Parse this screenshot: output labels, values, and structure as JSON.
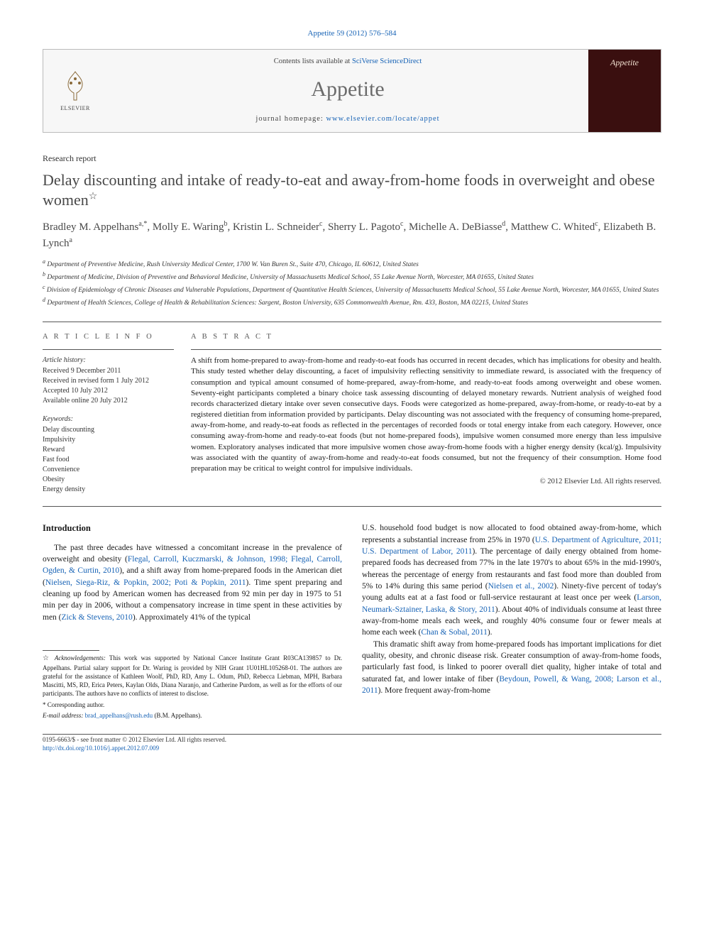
{
  "citation": "Appetite 59 (2012) 576–584",
  "masthead": {
    "contents_prefix": "Contents lists available at ",
    "contents_link": "SciVerse ScienceDirect",
    "journal_name": "Appetite",
    "homepage_prefix": "journal homepage: ",
    "homepage_link": "www.elsevier.com/locate/appet",
    "publisher": "ELSEVIER",
    "cover_label": "Appetite"
  },
  "article": {
    "type": "Research report",
    "title": "Delay discounting and intake of ready-to-eat and away-from-home foods in overweight and obese women",
    "title_star": "☆"
  },
  "authors_html": "Bradley M. Appelhans<sup>a,*</sup>, Molly E. Waring<sup>b</sup>, Kristin L. Schneider<sup>c</sup>, Sherry L. Pagoto<sup>c</sup>, Michelle A. DeBiasse<sup>d</sup>, Matthew C. Whited<sup>c</sup>, Elizabeth B. Lynch<sup>a</sup>",
  "affiliations": [
    "a Department of Preventive Medicine, Rush University Medical Center, 1700 W. Van Buren St., Suite 470, Chicago, IL 60612, United States",
    "b Department of Medicine, Division of Preventive and Behavioral Medicine, University of Massachusetts Medical School, 55 Lake Avenue North, Worcester, MA 01655, United States",
    "c Division of Epidemiology of Chronic Diseases and Vulnerable Populations, Department of Quantitative Health Sciences, University of Massachusetts Medical School, 55 Lake Avenue North, Worcester, MA 01655, United States",
    "d Department of Health Sciences, College of Health & Rehabilitation Sciences: Sargent, Boston University, 635 Commonwealth Avenue, Rm. 433, Boston, MA 02215, United States"
  ],
  "info": {
    "section_label": "A R T I C L E   I N F O",
    "history_label": "Article history:",
    "history": [
      "Received 9 December 2011",
      "Received in revised form 1 July 2012",
      "Accepted 10 July 2012",
      "Available online 20 July 2012"
    ],
    "keywords_label": "Keywords:",
    "keywords": [
      "Delay discounting",
      "Impulsivity",
      "Reward",
      "Fast food",
      "Convenience",
      "Obesity",
      "Energy density"
    ]
  },
  "abstract": {
    "section_label": "A B S T R A C T",
    "text": "A shift from home-prepared to away-from-home and ready-to-eat foods has occurred in recent decades, which has implications for obesity and health. This study tested whether delay discounting, a facet of impulsivity reflecting sensitivity to immediate reward, is associated with the frequency of consumption and typical amount consumed of home-prepared, away-from-home, and ready-to-eat foods among overweight and obese women. Seventy-eight participants completed a binary choice task assessing discounting of delayed monetary rewards. Nutrient analysis of weighed food records characterized dietary intake over seven consecutive days. Foods were categorized as home-prepared, away-from-home, or ready-to-eat by a registered dietitian from information provided by participants. Delay discounting was not associated with the frequency of consuming home-prepared, away-from-home, and ready-to-eat foods as reflected in the percentages of recorded foods or total energy intake from each category. However, once consuming away-from-home and ready-to-eat foods (but not home-prepared foods), impulsive women consumed more energy than less impulsive women. Exploratory analyses indicated that more impulsive women chose away-from-home foods with a higher energy density (kcal/g). Impulsivity was associated with the quantity of away-from-home and ready-to-eat foods consumed, but not the frequency of their consumption. Home food preparation may be critical to weight control for impulsive individuals.",
    "copyright": "© 2012 Elsevier Ltd. All rights reserved."
  },
  "body": {
    "intro_heading": "Introduction",
    "col1_p1_pre": "The past three decades have witnessed a concomitant increase in the prevalence of overweight and obesity (",
    "col1_cite1": "Flegal, Carroll, Kuczmarski, & Johnson, 1998; Flegal, Carroll, Ogden, & Curtin, 2010",
    "col1_p1_mid1": "), and a shift away from home-prepared foods in the American diet (",
    "col1_cite2": "Nielsen, Siega-Riz, & Popkin, 2002; Poti & Popkin, 2011",
    "col1_p1_mid2": "). Time spent preparing and cleaning up food by American women has decreased from 92 min per day in 1975 to 51 min per day in 2006, without a compensatory increase in time spent in these activities by men (",
    "col1_cite3": "Zick & Stevens, 2010",
    "col1_p1_end": "). Approximately 41% of the typical",
    "col2_p1_pre": "U.S. household food budget is now allocated to food obtained away-from-home, which represents a substantial increase from 25% in 1970 (",
    "col2_cite1": "U.S. Department of Agriculture, 2011; U.S. Department of Labor, 2011",
    "col2_p1_mid1": "). The percentage of daily energy obtained from home-prepared foods has decreased from 77% in the late 1970's to about 65% in the mid-1990's, whereas the percentage of energy from restaurants and fast food more than doubled from 5% to 14% during this same period (",
    "col2_cite2": "Nielsen et al., 2002",
    "col2_p1_mid2": "). Ninety-five percent of today's young adults eat at a fast food or full-service restaurant at least once per week (",
    "col2_cite3": "Larson, Neumark-Sztainer, Laska, & Story, 2011",
    "col2_p1_mid3": "). About 40% of individuals consume at least three away-from-home meals each week, and roughly 40% consume four or fewer meals at home each week (",
    "col2_cite4": "Chan & Sobal, 2011",
    "col2_p1_end": ").",
    "col2_p2_pre": "This dramatic shift away from home-prepared foods has important implications for diet quality, obesity, and chronic disease risk. Greater consumption of away-from-home foods, particularly fast food, is linked to poorer overall diet quality, higher intake of total and saturated fat, and lower intake of fiber (",
    "col2_cite5": "Beydoun, Powell, & Wang, 2008; Larson et al., 2011",
    "col2_p2_end": "). More frequent away-from-home"
  },
  "footnotes": {
    "ack_star": "☆",
    "ack_label": "Acknowledgements:",
    "ack_text": " This work was supported by National Cancer Institute Grant R03CA139857 to Dr. Appelhans. Partial salary support for Dr. Waring is provided by NIH Grant 1U01HL105268-01. The authors are grateful for the assistance of Kathleen Woolf, PhD, RD, Amy L. Odum, PhD, Rebecca Liebman, MPH, Barbara Mascitti, MS, RD, Erica Peters, Kaylan Olds, Diana Naranjo, and Catherine Purdom, as well as for the efforts of our participants. The authors have no conflicts of interest to disclose.",
    "corr_label": "* Corresponding author.",
    "email_label": "E-mail address: ",
    "email": "brad_appelhans@rush.edu",
    "email_suffix": " (B.M. Appelhans)."
  },
  "footer": {
    "issn_line": "0195-6663/$ - see front matter © 2012 Elsevier Ltd. All rights reserved.",
    "doi": "http://dx.doi.org/10.1016/j.appet.2012.07.009"
  },
  "colors": {
    "link": "#1662b5",
    "heading_gray": "#484848",
    "cover_bg": "#3a0f0f"
  }
}
